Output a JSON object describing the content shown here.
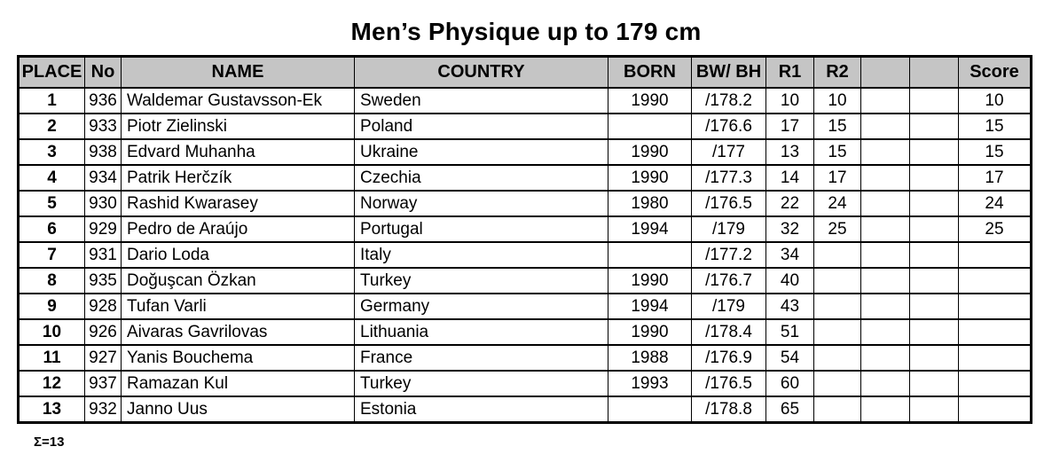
{
  "page": {
    "title": "Men’s Physique up to 179 cm",
    "footer_sum": "Σ=13"
  },
  "colors": {
    "header_bg": "#c5c5c5",
    "border": "#000000",
    "text": "#000000",
    "row_bg": "#ffffff"
  },
  "table": {
    "columns": [
      {
        "key": "place",
        "label": "PLACE"
      },
      {
        "key": "no",
        "label": "No"
      },
      {
        "key": "name",
        "label": "NAME"
      },
      {
        "key": "country",
        "label": "COUNTRY"
      },
      {
        "key": "born",
        "label": "BORN"
      },
      {
        "key": "bwbh",
        "label": "BW/ BH"
      },
      {
        "key": "r1",
        "label": "R1"
      },
      {
        "key": "r2",
        "label": "R2"
      },
      {
        "key": "extra1",
        "label": ""
      },
      {
        "key": "extra2",
        "label": ""
      },
      {
        "key": "score",
        "label": "Score"
      }
    ],
    "rows": [
      [
        "1",
        "936",
        "Waldemar Gustavsson-Ek",
        "Sweden",
        "1990",
        "/178.2",
        "10",
        "10",
        "",
        "",
        "10"
      ],
      [
        "2",
        "933",
        "Piotr Zielinski",
        "Poland",
        "",
        "/176.6",
        "17",
        "15",
        "",
        "",
        "15"
      ],
      [
        "3",
        "938",
        "Edvard Muhanha",
        "Ukraine",
        "1990",
        "/177",
        "13",
        "15",
        "",
        "",
        "15"
      ],
      [
        "4",
        "934",
        "Patrik Herčzík",
        "Czechia",
        "1990",
        "/177.3",
        "14",
        "17",
        "",
        "",
        "17"
      ],
      [
        "5",
        "930",
        "Rashid Kwarasey",
        "Norway",
        "1980",
        "/176.5",
        "22",
        "24",
        "",
        "",
        "24"
      ],
      [
        "6",
        "929",
        "Pedro de Araújo",
        "Portugal",
        "1994",
        "/179",
        "32",
        "25",
        "",
        "",
        "25"
      ],
      [
        "7",
        "931",
        "Dario Loda",
        "Italy",
        "",
        "/177.2",
        "34",
        "",
        "",
        "",
        ""
      ],
      [
        "8",
        "935",
        "Doğuşcan Özkan",
        "Turkey",
        "1990",
        "/176.7",
        "40",
        "",
        "",
        "",
        ""
      ],
      [
        "9",
        "928",
        "Tufan Varli",
        "Germany",
        "1994",
        "/179",
        "43",
        "",
        "",
        "",
        ""
      ],
      [
        "10",
        "926",
        "Aivaras Gavrilovas",
        "Lithuania",
        "1990",
        "/178.4",
        "51",
        "",
        "",
        "",
        ""
      ],
      [
        "11",
        "927",
        "Yanis Bouchema",
        "France",
        "1988",
        "/176.9",
        "54",
        "",
        "",
        "",
        ""
      ],
      [
        "12",
        "937",
        "Ramazan Kul",
        "Turkey",
        "1993",
        "/176.5",
        "60",
        "",
        "",
        "",
        ""
      ],
      [
        "13",
        "932",
        "Janno Uus",
        "Estonia",
        "",
        "/178.8",
        "65",
        "",
        "",
        "",
        ""
      ]
    ]
  }
}
